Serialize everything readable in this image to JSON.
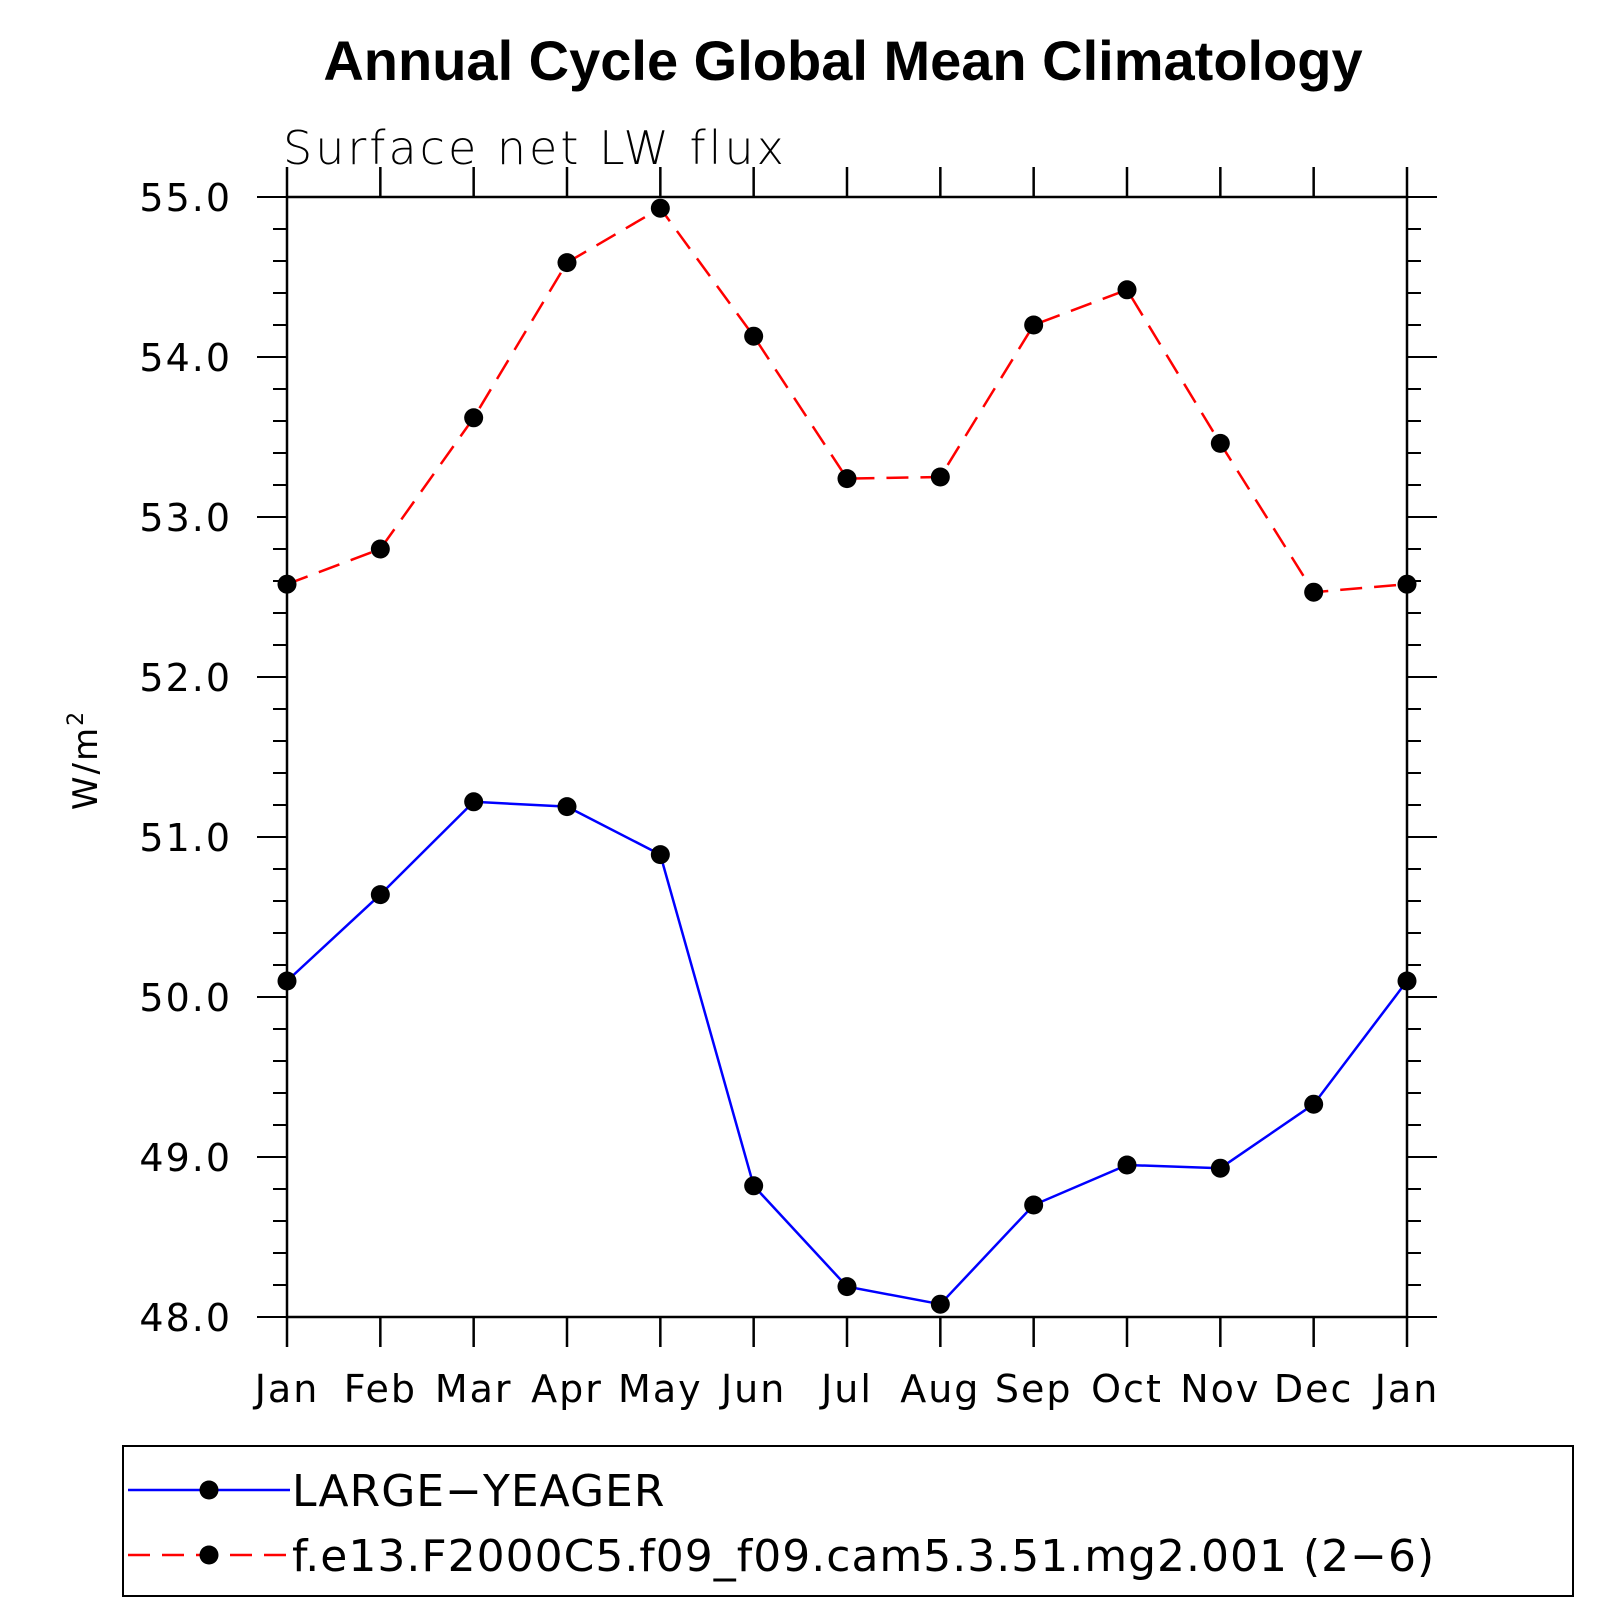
{
  "chart_data": {
    "type": "line",
    "title": "Annual Cycle Global Mean Climatology",
    "subtitle": "Surface net LW flux",
    "ylabel_base": "W/m",
    "ylabel_sup": "2",
    "categories": [
      "Jan",
      "Feb",
      "Mar",
      "Apr",
      "May",
      "Jun",
      "Jul",
      "Aug",
      "Sep",
      "Oct",
      "Nov",
      "Dec",
      "Jan"
    ],
    "ylim": [
      48.0,
      55.0
    ],
    "yticks": [
      "48.0",
      "49.0",
      "50.0",
      "51.0",
      "52.0",
      "53.0",
      "54.0",
      "55.0"
    ],
    "series": [
      {
        "name": "LARGE−YEAGER",
        "color": "#0000ff",
        "dash": "solid",
        "values": [
          50.1,
          50.64,
          51.22,
          51.19,
          50.89,
          48.82,
          48.19,
          48.08,
          48.7,
          48.95,
          48.93,
          49.33,
          50.1
        ]
      },
      {
        "name": "f.e13.F2000C5.f09_f09.cam5.3.51.mg2.001 (2−6)",
        "color": "#ff0000",
        "dash": "dashed",
        "values": [
          52.58,
          52.8,
          53.62,
          54.59,
          54.93,
          54.13,
          53.24,
          53.25,
          54.2,
          54.42,
          53.46,
          52.53,
          52.58
        ]
      }
    ],
    "grid": false,
    "legend": "bottom",
    "marker_color": "#000000"
  }
}
